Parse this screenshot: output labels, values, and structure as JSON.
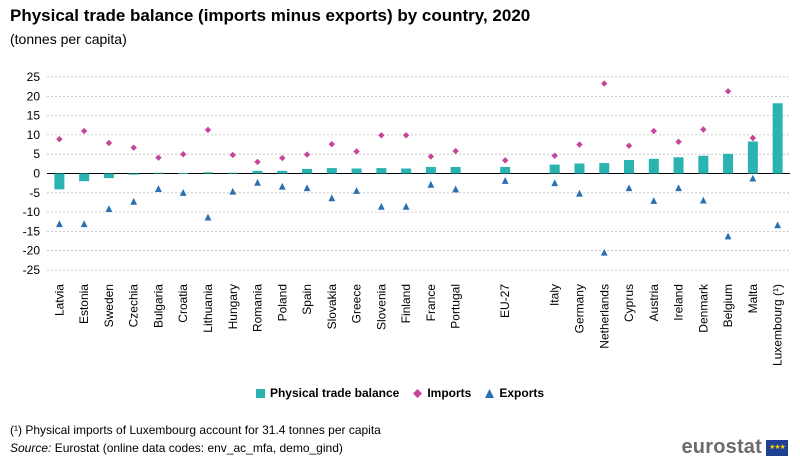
{
  "header": {
    "title": "Physical trade balance (imports minus exports) by country, 2020",
    "subtitle": "(tonnes per capita)"
  },
  "legend": {
    "balance": "Physical trade balance",
    "imports": "Imports",
    "exports": "Exports"
  },
  "footer": {
    "footnote": "(¹) Physical imports of Luxembourg account for 31.4 tonnes per capita",
    "source_label": "Source:",
    "source_text": " Eurostat (online data codes: env_ac_mfa, demo_gind)",
    "logo_text": "eurostat"
  },
  "colors": {
    "balance": "#2bb3b1",
    "imports": "#c7449a",
    "exports": "#2a6fb0"
  },
  "chart_data": {
    "type": "bar",
    "title": "Physical trade balance (imports minus exports) by country, 2020",
    "subtitle": "(tonnes per capita)",
    "ylim": [
      -25,
      25
    ],
    "yticks": [
      -25,
      -20,
      -15,
      -10,
      -5,
      0,
      5,
      10,
      15,
      20,
      25
    ],
    "grid": true,
    "legend_position": "bottom",
    "categories": [
      "Latvia",
      "Estonia",
      "Sweden",
      "Czechia",
      "Bulgaria",
      "Croatia",
      "Lithuania",
      "Hungary",
      "Romania",
      "Poland",
      "Spain",
      "Slovakia",
      "Greece",
      "Slovenia",
      "Finland",
      "France",
      "Portugal",
      "",
      "EU-27",
      "",
      "Italy",
      "Germany",
      "Netherlands",
      "Cyprus",
      "Austria",
      "Ireland",
      "Denmark",
      "Belgium",
      "Malta",
      "Luxembourg (¹)"
    ],
    "series": [
      {
        "name": "Physical trade balance",
        "type": "bar",
        "values": [
          -4.1,
          -2.0,
          -1.2,
          -0.3,
          0.2,
          0.1,
          0.3,
          0.2,
          0.7,
          0.7,
          1.2,
          1.4,
          1.3,
          1.4,
          1.3,
          1.7,
          1.7,
          null,
          1.7,
          null,
          2.3,
          2.6,
          2.7,
          3.5,
          3.8,
          4.2,
          4.6,
          5.1,
          8.3,
          18.2
        ]
      },
      {
        "name": "Imports",
        "type": "scatter",
        "marker": "diamond",
        "values": [
          8.9,
          11.0,
          7.9,
          6.7,
          4.1,
          5.0,
          11.3,
          4.8,
          3.0,
          4.0,
          4.9,
          7.6,
          5.7,
          9.9,
          9.9,
          4.4,
          5.8,
          null,
          3.4,
          null,
          4.6,
          7.5,
          23.3,
          7.2,
          11.0,
          8.2,
          11.4,
          21.3,
          9.2,
          null
        ]
      },
      {
        "name": "Exports",
        "type": "scatter",
        "marker": "triangle",
        "values": [
          -13.0,
          -13.0,
          -9.1,
          -7.2,
          -3.9,
          -4.9,
          -11.3,
          -4.6,
          -2.3,
          -3.3,
          -3.7,
          -6.3,
          -4.4,
          -8.5,
          -8.5,
          -2.8,
          -4.0,
          null,
          -1.8,
          null,
          -2.4,
          -5.1,
          -20.4,
          -3.7,
          -7.0,
          -3.7,
          -6.9,
          -16.2,
          -1.2,
          -13.3
        ]
      }
    ]
  }
}
